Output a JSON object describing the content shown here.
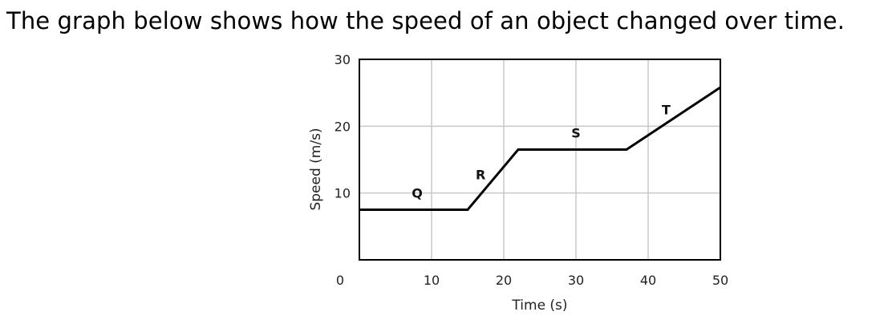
{
  "question": {
    "text": "The graph below shows how the speed of an object changed over time."
  },
  "chart_data": {
    "type": "line",
    "title": "",
    "xlabel": "Time (s)",
    "ylabel": "Speed (m/s)",
    "xlim": [
      0,
      50
    ],
    "ylim": [
      0,
      30
    ],
    "grid": true,
    "xticks": [
      "0",
      "10",
      "20",
      "30",
      "40",
      "50"
    ],
    "yticks": [
      "0",
      "10",
      "20",
      "30"
    ],
    "series": [
      {
        "x": [
          0,
          15,
          22,
          37,
          50
        ],
        "y": [
          7.5,
          7.5,
          16.5,
          16.5,
          25.8
        ]
      }
    ],
    "segment_labels": [
      {
        "text": "Q",
        "x": 8,
        "y": 10
      },
      {
        "text": "R",
        "x": 16.8,
        "y": 12.8
      },
      {
        "text": "S",
        "x": 30,
        "y": 19
      },
      {
        "text": "T",
        "x": 42.5,
        "y": 22.5
      }
    ]
  }
}
